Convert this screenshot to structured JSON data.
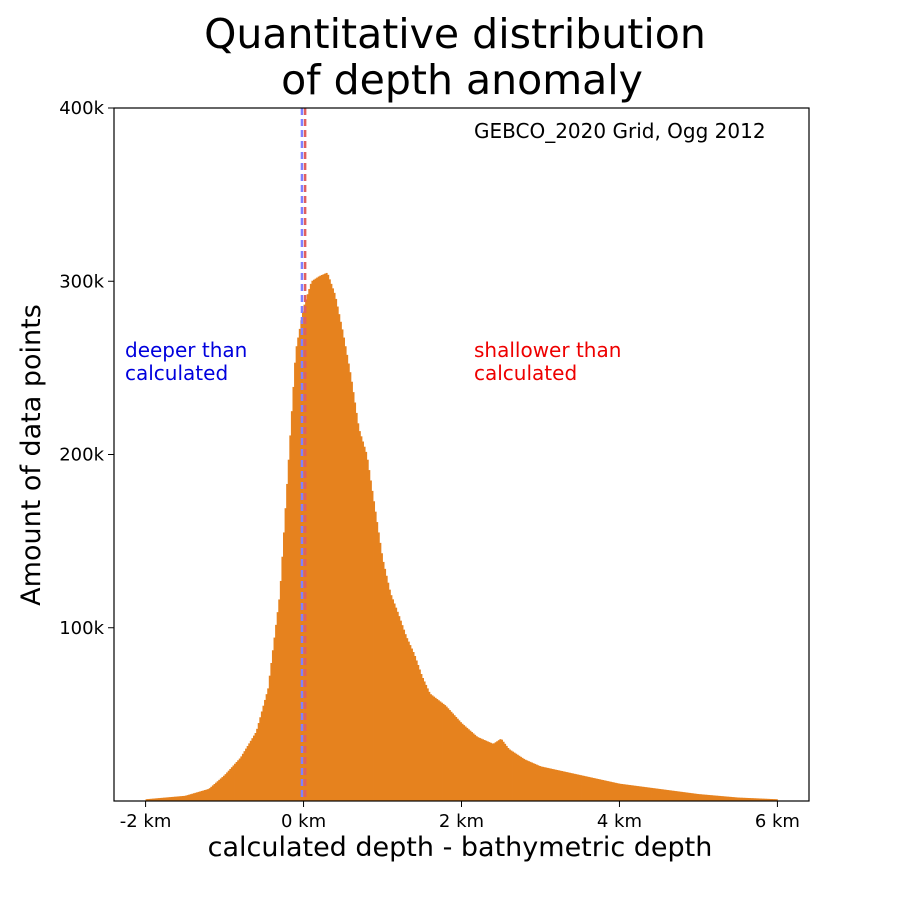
{
  "chart_data": {
    "type": "bar",
    "title_lines": [
      "Quantitative distribution",
      "of depth anomaly"
    ],
    "xlabel": "calculated depth - bathymetric depth",
    "ylabel": "Amount of data points",
    "xlim": [
      -2.4,
      6.4
    ],
    "ylim": [
      0,
      400000
    ],
    "xticks": [
      {
        "value": -2,
        "label": "-2 km"
      },
      {
        "value": 0,
        "label": "0 km"
      },
      {
        "value": 2,
        "label": "2 km"
      },
      {
        "value": 4,
        "label": "4 km"
      },
      {
        "value": 6,
        "label": "6 km"
      }
    ],
    "yticks": [
      {
        "value": 100000,
        "label": "100k"
      },
      {
        "value": 200000,
        "label": "200k"
      },
      {
        "value": 300000,
        "label": "300k"
      },
      {
        "value": 400000,
        "label": "400k"
      }
    ],
    "bar_color": "#e6821e",
    "reference_lines": [
      {
        "x": -0.02,
        "color": "#8080ff",
        "style": "dashed"
      },
      {
        "x": 0.02,
        "color": "#e06060",
        "style": "dashed"
      }
    ],
    "annotations": {
      "source": "GEBCO_2020 Grid, Ogg 2012",
      "deeper": {
        "lines": [
          "deeper than",
          "calculated"
        ],
        "color": "#0000dd"
      },
      "shallower": {
        "lines": [
          "shallower than",
          "calculated"
        ],
        "color": "#ee0000"
      }
    },
    "distribution": {
      "x": [
        -2.0,
        -1.5,
        -1.2,
        -1.0,
        -0.8,
        -0.6,
        -0.45,
        -0.3,
        -0.2,
        -0.1,
        0.0,
        0.1,
        0.2,
        0.3,
        0.4,
        0.5,
        0.6,
        0.7,
        0.8,
        0.9,
        1.0,
        1.1,
        1.2,
        1.3,
        1.4,
        1.5,
        1.6,
        1.8,
        2.0,
        2.2,
        2.4,
        2.5,
        2.6,
        2.8,
        3.0,
        3.5,
        4.0,
        4.5,
        5.0,
        5.5,
        6.0
      ],
      "y": [
        1000,
        3000,
        7000,
        15000,
        25000,
        40000,
        65000,
        120000,
        190000,
        260000,
        285000,
        300000,
        303000,
        305000,
        292000,
        270000,
        245000,
        215000,
        200000,
        170000,
        140000,
        120000,
        108000,
        95000,
        85000,
        72000,
        62000,
        55000,
        45000,
        37000,
        33000,
        36000,
        30000,
        24000,
        20000,
        15000,
        10000,
        7000,
        4000,
        2000,
        1000
      ]
    }
  }
}
